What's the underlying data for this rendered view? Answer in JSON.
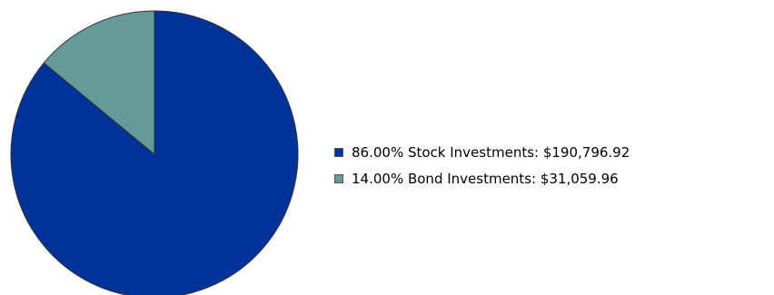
{
  "chart_data": {
    "type": "pie",
    "categories": [
      "Stock Investments",
      "Bond Investments"
    ],
    "percent_labels": [
      "86.00%",
      "14.00%"
    ],
    "values": [
      190796.92,
      31059.96
    ],
    "value_labels": [
      "$190,796.92",
      "$31,059.96"
    ],
    "colors": [
      "#003399",
      "#669999"
    ],
    "start_angle_deg": 0,
    "direction": "clockwise",
    "slice_outline_color": "#333333",
    "legend_placement": "right",
    "legend": [
      {
        "text": "86.00% Stock Investments: $190,796.92",
        "color": "#003399"
      },
      {
        "text": "14.00% Bond Investments: $31,059.96",
        "color": "#669999"
      }
    ]
  }
}
